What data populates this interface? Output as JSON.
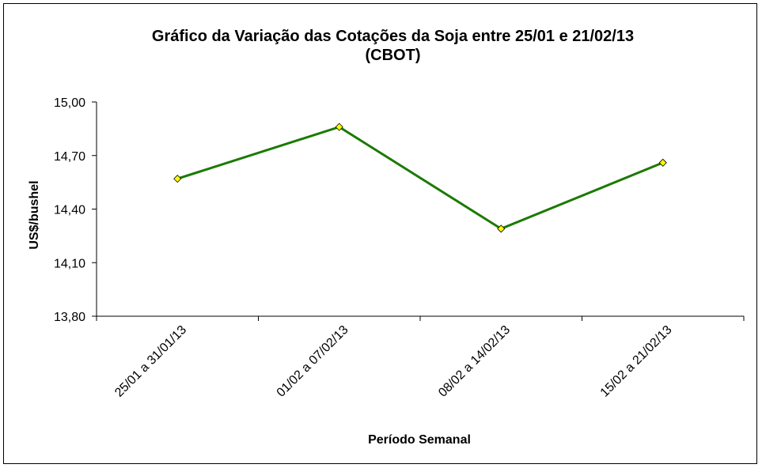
{
  "chart_data": {
    "type": "line",
    "title": "Gráfico da Variação das Cotações da Soja entre 25/01 e 21/02/13",
    "subtitle": "(CBOT)",
    "xlabel": "Período Semanal",
    "ylabel": "US$/bushel",
    "categories": [
      "25/01 a 31/01/13",
      "01/02 a 07/02/13",
      "08/02 a 14/02/13",
      "15/02 a 21/02/13"
    ],
    "series": [
      {
        "values": [
          14.57,
          14.86,
          14.29,
          14.66
        ]
      }
    ],
    "ylim": [
      13.8,
      15.0
    ],
    "yticks": [
      "13,80",
      "14,10",
      "14,40",
      "14,70",
      "15,00"
    ],
    "grid": false,
    "legend": "none",
    "colors": {
      "line": "#1a7a00",
      "marker": "#ffff00",
      "axis": "#000000"
    }
  }
}
